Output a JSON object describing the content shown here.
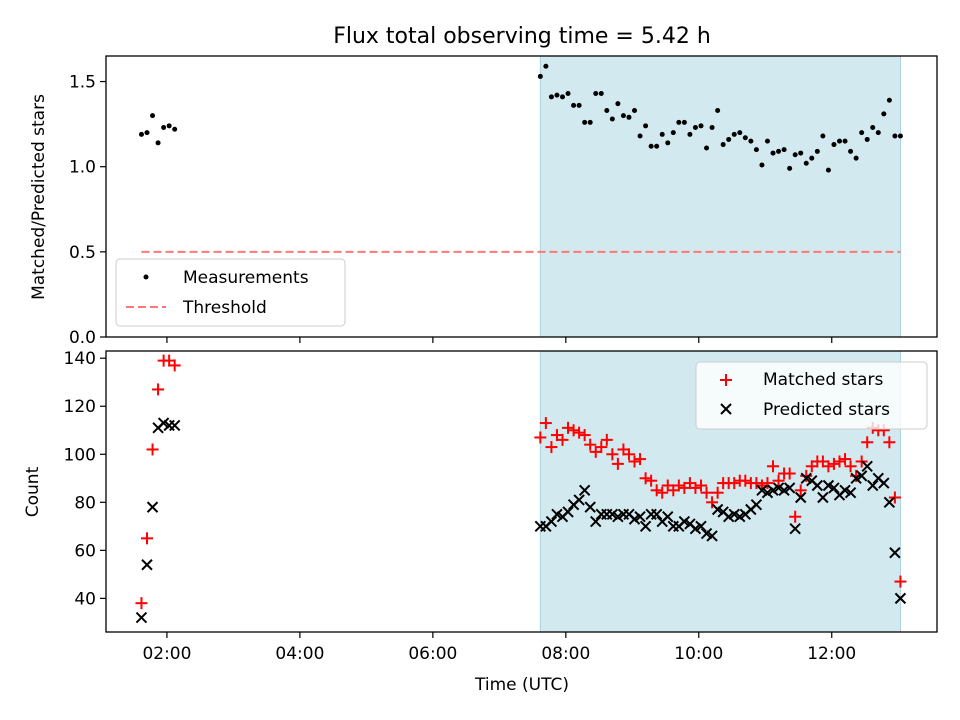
{
  "title": "Flux total observing time = 5.42 h",
  "xlabel": "Time (UTC)",
  "top": {
    "ylabel": "Matched/Predicted stars",
    "ylim": [
      0,
      1.65
    ],
    "yticks": [
      "0.0",
      "0.5",
      "1.0",
      "1.5"
    ],
    "legend": [
      "Measurements",
      "Threshold"
    ],
    "legend_position": "lower-left",
    "threshold": 0.5
  },
  "bottom": {
    "ylabel": "Count",
    "ylim": [
      26,
      143
    ],
    "yticks": [
      "40",
      "60",
      "80",
      "100",
      "120",
      "140"
    ],
    "legend": [
      "Matched stars",
      "Predicted stars"
    ],
    "legend_position": "upper-right"
  },
  "xticks": [
    "02:00",
    "04:00",
    "06:00",
    "08:00",
    "10:00",
    "12:00"
  ],
  "colors": {
    "measurements": "#000000",
    "threshold": "#ff7777",
    "matched": "#ff0000",
    "predicted": "#000000",
    "shade": "#d3e9f0"
  },
  "chart_data": [
    {
      "type": "scatter",
      "title": "Flux total observing time = 5.42 h",
      "ylabel": "Matched/Predicted stars",
      "xlabel": "",
      "xlim": [
        "01:05",
        "13:35"
      ],
      "ylim": [
        0,
        1.65
      ],
      "shaded_interval": [
        "07:37",
        "13:02"
      ],
      "grid": false,
      "series": [
        {
          "name": "Measurements",
          "x": [
            "01:37",
            "01:42",
            "01:47",
            "01:52",
            "01:57",
            "02:02",
            "02:07",
            "07:37",
            "07:42",
            "07:47",
            "07:52",
            "07:57",
            "08:02",
            "08:07",
            "08:12",
            "08:17",
            "08:22",
            "08:27",
            "08:32",
            "08:37",
            "08:42",
            "08:47",
            "08:52",
            "08:57",
            "09:02",
            "09:07",
            "09:12",
            "09:17",
            "09:22",
            "09:27",
            "09:32",
            "09:37",
            "09:42",
            "09:47",
            "09:52",
            "09:57",
            "10:02",
            "10:07",
            "10:12",
            "10:17",
            "10:22",
            "10:27",
            "10:32",
            "10:37",
            "10:42",
            "10:47",
            "10:52",
            "10:57",
            "11:02",
            "11:07",
            "11:12",
            "11:17",
            "11:22",
            "11:27",
            "11:32",
            "11:37",
            "11:42",
            "11:47",
            "11:52",
            "11:57",
            "12:02",
            "12:07",
            "12:12",
            "12:17",
            "12:22",
            "12:27",
            "12:32",
            "12:37",
            "12:42",
            "12:47",
            "12:52",
            "12:57",
            "13:02"
          ],
          "y": [
            1.19,
            1.2,
            1.3,
            1.14,
            1.23,
            1.24,
            1.22,
            1.53,
            1.59,
            1.41,
            1.42,
            1.41,
            1.43,
            1.36,
            1.36,
            1.26,
            1.26,
            1.43,
            1.43,
            1.33,
            1.28,
            1.37,
            1.3,
            1.29,
            1.33,
            1.18,
            1.24,
            1.12,
            1.12,
            1.19,
            1.14,
            1.2,
            1.26,
            1.26,
            1.19,
            1.23,
            1.24,
            1.11,
            1.23,
            1.33,
            1.13,
            1.16,
            1.19,
            1.2,
            1.17,
            1.15,
            1.1,
            1.01,
            1.15,
            1.08,
            1.09,
            1.1,
            0.99,
            1.07,
            1.08,
            1.02,
            1.05,
            1.09,
            1.18,
            0.98,
            1.13,
            1.15,
            1.15,
            1.09,
            1.05,
            1.2,
            1.16,
            1.23,
            1.2,
            1.31,
            1.39,
            1.18,
            1.18
          ]
        },
        {
          "name": "Threshold",
          "type": "line",
          "x": [
            "01:37",
            "13:02"
          ],
          "y": [
            0.5,
            0.5
          ]
        }
      ]
    },
    {
      "type": "scatter",
      "title": "",
      "ylabel": "Count",
      "xlabel": "Time (UTC)",
      "xlim": [
        "01:05",
        "13:35"
      ],
      "ylim": [
        26,
        143
      ],
      "shaded_interval": [
        "07:37",
        "13:02"
      ],
      "grid": false,
      "series": [
        {
          "name": "Matched stars",
          "x": [
            "01:37",
            "01:42",
            "01:47",
            "01:52",
            "01:57",
            "02:02",
            "02:07",
            "07:37",
            "07:42",
            "07:47",
            "07:52",
            "07:57",
            "08:02",
            "08:07",
            "08:12",
            "08:17",
            "08:22",
            "08:27",
            "08:32",
            "08:37",
            "08:42",
            "08:47",
            "08:52",
            "08:57",
            "09:02",
            "09:07",
            "09:12",
            "09:17",
            "09:22",
            "09:27",
            "09:32",
            "09:37",
            "09:42",
            "09:47",
            "09:52",
            "09:57",
            "10:02",
            "10:07",
            "10:12",
            "10:17",
            "10:22",
            "10:27",
            "10:32",
            "10:37",
            "10:42",
            "10:47",
            "10:52",
            "10:57",
            "11:02",
            "11:07",
            "11:12",
            "11:17",
            "11:22",
            "11:27",
            "11:32",
            "11:37",
            "11:42",
            "11:47",
            "11:52",
            "11:57",
            "12:02",
            "12:07",
            "12:12",
            "12:17",
            "12:22",
            "12:27",
            "12:32",
            "12:37",
            "12:42",
            "12:47",
            "12:52",
            "12:57",
            "13:02"
          ],
          "y": [
            38,
            65,
            102,
            127,
            139,
            139,
            137,
            107,
            113,
            103,
            108,
            106,
            111,
            110,
            109,
            108,
            104,
            101,
            103,
            106,
            100,
            96,
            102,
            100,
            97,
            98,
            90,
            89,
            85,
            84,
            87,
            85,
            87,
            86,
            88,
            86,
            87,
            84,
            80,
            84,
            88,
            88,
            88,
            89,
            89,
            88,
            88,
            87,
            88,
            95,
            89,
            92,
            92,
            74,
            85,
            91,
            95,
            97,
            97,
            95,
            96,
            97,
            98,
            95,
            91,
            97,
            105,
            111,
            110,
            110,
            105,
            82,
            47
          ]
        },
        {
          "name": "Predicted stars",
          "x": [
            "01:37",
            "01:42",
            "01:47",
            "01:52",
            "01:57",
            "02:02",
            "02:07",
            "07:37",
            "07:42",
            "07:47",
            "07:52",
            "07:57",
            "08:02",
            "08:07",
            "08:12",
            "08:17",
            "08:22",
            "08:27",
            "08:32",
            "08:37",
            "08:42",
            "08:47",
            "08:52",
            "08:57",
            "09:02",
            "09:07",
            "09:12",
            "09:17",
            "09:22",
            "09:27",
            "09:32",
            "09:37",
            "09:42",
            "09:47",
            "09:52",
            "09:57",
            "10:02",
            "10:07",
            "10:12",
            "10:17",
            "10:22",
            "10:27",
            "10:32",
            "10:37",
            "10:42",
            "10:47",
            "10:52",
            "10:57",
            "11:02",
            "11:07",
            "11:12",
            "11:17",
            "11:22",
            "11:27",
            "11:32",
            "11:37",
            "11:42",
            "11:47",
            "11:52",
            "11:57",
            "12:02",
            "12:07",
            "12:12",
            "12:17",
            "12:22",
            "12:27",
            "12:32",
            "12:37",
            "12:42",
            "12:47",
            "12:52",
            "12:57",
            "13:02"
          ],
          "y": [
            32,
            54,
            78,
            111,
            113,
            112,
            112,
            70,
            70,
            72,
            75,
            74,
            76,
            79,
            81,
            85,
            78,
            72,
            75,
            75,
            75,
            74,
            75,
            75,
            73,
            74,
            70,
            75,
            75,
            72,
            74,
            70,
            70,
            72,
            71,
            69,
            70,
            67,
            66,
            77,
            76,
            74,
            75,
            74,
            75,
            77,
            79,
            85,
            84,
            85,
            86,
            85,
            86,
            69,
            82,
            90,
            89,
            87,
            82,
            87,
            86,
            83,
            85,
            84,
            90,
            91,
            95,
            87,
            90,
            88,
            80,
            59,
            40
          ]
        }
      ]
    }
  ]
}
